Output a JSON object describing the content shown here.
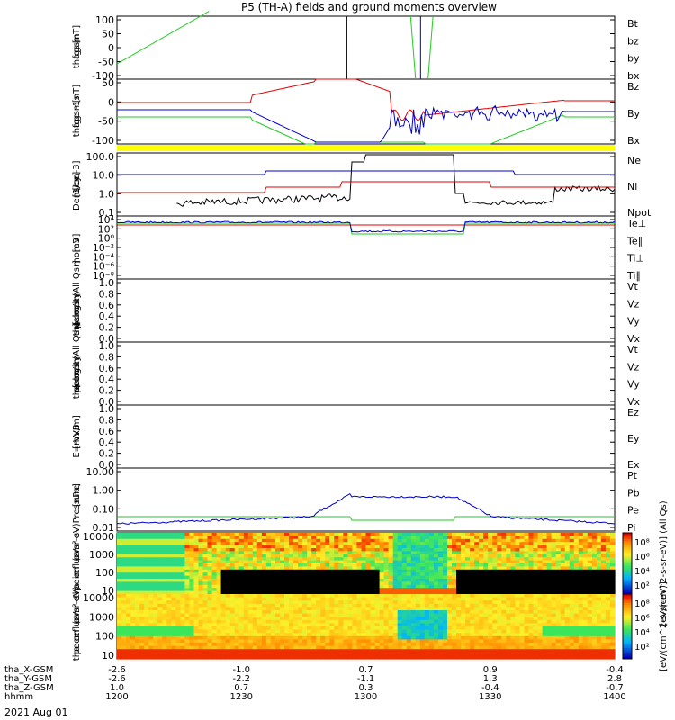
{
  "title": "P5 (TH-A) fields and ground moments overview",
  "date": "2021 Aug 01",
  "colors": {
    "black": "#000000",
    "red": "#e60000",
    "green": "#22cc22",
    "blue": "#0000cc",
    "yellow": "#ffff00"
  },
  "chart_data": [
    {
      "type": "line",
      "id": "fgs",
      "ylabel": [
        "tha",
        "fgs",
        "gsm",
        "[nT]"
      ],
      "yticks": [
        "100",
        "50",
        "0",
        "-50",
        "-100"
      ],
      "ylim": [
        -100,
        100
      ],
      "legend": [
        "Bt",
        "bz",
        "by",
        "bx"
      ]
    },
    {
      "type": "line",
      "id": "fge",
      "ylabel": [
        "tha",
        "fge",
        "gsm",
        "-1s",
        "[nT]"
      ],
      "yticks": [
        "50",
        "0",
        "-50",
        "-100"
      ],
      "ylim": [
        -120,
        80
      ],
      "legend": [
        "Bz",
        "By",
        "Bx"
      ]
    },
    {
      "type": "line",
      "id": "density",
      "scale": "log",
      "ylabel": [
        "Density",
        "[1/cc]",
        "[cm-3]"
      ],
      "yticks": [
        "100.0",
        "10.0",
        "1.0",
        "0.1"
      ],
      "legend": [
        "Ne",
        "Ni",
        "Npot"
      ]
    },
    {
      "type": "line",
      "id": "temp",
      "scale": "log",
      "ylabel": [
        "mom3",
        "[eV]"
      ],
      "yticks": [
        "10⁴",
        "10²",
        "10⁰",
        "10⁻²",
        "10⁻⁴",
        "10⁻⁶",
        "10⁻⁸"
      ],
      "legend": [
        "Te⊥",
        "Te∥",
        "Ti⊥",
        "Ti∥"
      ]
    },
    {
      "type": "line",
      "id": "peir_vel",
      "ylabel": [
        "tha",
        "peir",
        "velocity",
        "gsm",
        "[km/s (All Qs)]"
      ],
      "yticks": [
        "1.0",
        "0.8",
        "0.6",
        "0.4",
        "0.2",
        "0.0"
      ],
      "ylim": [
        0,
        1
      ],
      "legend": [
        "Vt",
        "Vz",
        "Vy",
        "Vx"
      ]
    },
    {
      "type": "line",
      "id": "peer_vel",
      "ylabel": [
        "tha",
        "peer",
        "velocity",
        "gsm",
        "[km/s (All Qs)]"
      ],
      "yticks": [
        "1.0",
        "0.8",
        "0.6",
        "0.4",
        "0.2",
        "0.0"
      ],
      "ylim": [
        0,
        1
      ],
      "legend": [
        "Vt",
        "Vz",
        "Vy",
        "Vx"
      ]
    },
    {
      "type": "line",
      "id": "efield",
      "ylabel": [
        "E=-VxB",
        "[mV/m]"
      ],
      "yticks": [
        "1.0",
        "0.8",
        "0.6",
        "0.4",
        "0.2",
        "0.0"
      ],
      "ylim": [
        0,
        1
      ],
      "legend": [
        "Ez",
        "Ey",
        "Ex"
      ]
    },
    {
      "type": "line",
      "id": "pressure",
      "scale": "log",
      "ylabel": [
        "Pressure",
        "[nPa]"
      ],
      "yticks": [
        "10.00",
        "1.00",
        "0.10",
        "0.01"
      ],
      "legend": [
        "Pt",
        "Pb",
        "Pe",
        "Pi"
      ]
    },
    {
      "type": "heatmap",
      "id": "peir_eflux",
      "ylabel": [
        "tha",
        "peir",
        "en",
        "eflux",
        "eV",
        "(cm²-s-",
        "sr-eV)"
      ],
      "yticks": [
        "10000",
        "1000",
        "100",
        "10"
      ],
      "colorbar": {
        "ticks": [
          "10⁸",
          "10⁶",
          "10⁴",
          "10²"
        ],
        "label": "[eV/(cm^2-s-sr-eV)] (All Qs)"
      }
    },
    {
      "type": "heatmap",
      "id": "peer_eflux",
      "ylabel": [
        "tha",
        "peer",
        "en",
        "eflux",
        "eV",
        "(cm²-s-",
        "sr-eV)"
      ],
      "yticks": [
        "10000",
        "1000",
        "100",
        "10"
      ],
      "colorbar": {
        "ticks": [
          "10⁸",
          "10⁶",
          "10⁴",
          "10²"
        ],
        "label": "[eV/(cm^2-s-sr-eV)]"
      }
    }
  ],
  "xaxis": {
    "rows": [
      {
        "label": "tha_X-GSM",
        "values": [
          "-2.6",
          "-1.0",
          "0.7",
          "0.9",
          "-0.4"
        ]
      },
      {
        "label": "tha_Y-GSM",
        "values": [
          "-2.6",
          "-2.2",
          "-1.1",
          "1.3",
          "2.8"
        ]
      },
      {
        "label": "tha_Z-GSM",
        "values": [
          "1.0",
          "0.7",
          "0.3",
          "-0.4",
          "-0.7"
        ]
      },
      {
        "label": "hhmm",
        "values": [
          "1200",
          "1230",
          "1300",
          "1330",
          "1400"
        ]
      }
    ]
  }
}
